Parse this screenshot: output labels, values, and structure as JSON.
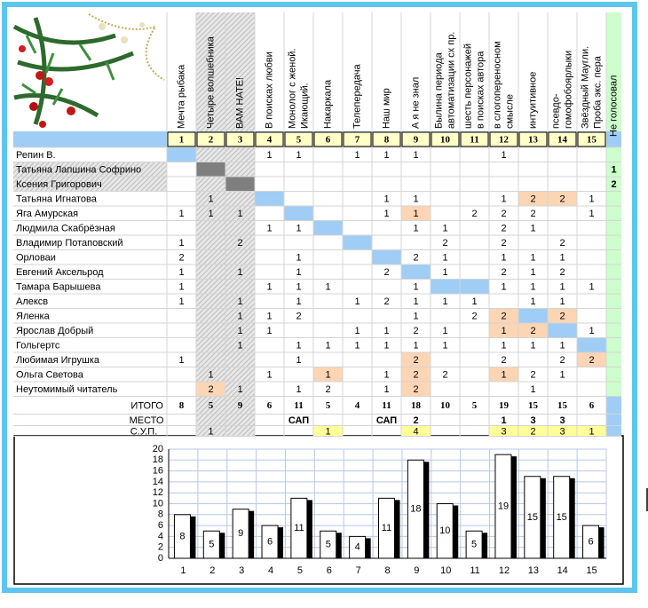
{
  "table": {
    "columns": [
      {
        "number": 1,
        "title": [
          "Мечта рыбака"
        ]
      },
      {
        "number": 2,
        "title": [
          "Четыре волшебника"
        ]
      },
      {
        "number": 3,
        "title": [
          "ВАМ НАТЕ!"
        ]
      },
      {
        "number": 4,
        "title": [
          "В поисках любви"
        ]
      },
      {
        "number": 5,
        "title": [
          "Монолог с женой.",
          "Икающий."
        ]
      },
      {
        "number": 6,
        "title": [
          "Накаркала"
        ]
      },
      {
        "number": 7,
        "title": [
          "Телепередача"
        ]
      },
      {
        "number": 8,
        "title": [
          "Наш мир"
        ]
      },
      {
        "number": 9,
        "title": [
          "А я не знал"
        ]
      },
      {
        "number": 10,
        "title": [
          "Былина периода",
          "автоматизации сх пр."
        ]
      },
      {
        "number": 11,
        "title": [
          "шесть персонажей",
          "в поисках автора"
        ]
      },
      {
        "number": 12,
        "title": [
          "в слогопереносном",
          "смысле"
        ]
      },
      {
        "number": 13,
        "title": [
          "интуитивное"
        ]
      },
      {
        "number": 14,
        "title": [
          "псевдо-",
          "гомофобоярлыки"
        ]
      },
      {
        "number": 15,
        "title": [
          "Звёздный Маугли.",
          "Проба экс. пера"
        ]
      }
    ],
    "extra_column": "Не голосовал",
    "rows": [
      {
        "name": "Репин В.",
        "cells": [
          null,
          null,
          null,
          1,
          1,
          null,
          1,
          1,
          1,
          null,
          null,
          1,
          null,
          null,
          null
        ],
        "extra": null
      },
      {
        "name": "Татьяна Лапшина Софрино",
        "cells": [
          null,
          null,
          null,
          null,
          null,
          null,
          null,
          null,
          null,
          null,
          null,
          null,
          null,
          null,
          null
        ],
        "extra": 1
      },
      {
        "name": "Ксения Григорович",
        "cells": [
          null,
          null,
          null,
          null,
          null,
          null,
          null,
          null,
          null,
          null,
          null,
          null,
          null,
          null,
          null
        ],
        "extra": 2
      },
      {
        "name": "Татьяна Игнатова",
        "cells": [
          null,
          1,
          null,
          null,
          null,
          null,
          null,
          1,
          1,
          null,
          null,
          1,
          2,
          2,
          1
        ],
        "extra": null
      },
      {
        "name": "Яга Амурская",
        "cells": [
          1,
          1,
          1,
          null,
          null,
          null,
          null,
          1,
          1,
          null,
          2,
          2,
          2,
          null,
          1
        ],
        "extra": null
      },
      {
        "name": "Людмила Скабрёзная",
        "cells": [
          null,
          null,
          null,
          1,
          1,
          null,
          null,
          null,
          1,
          1,
          null,
          2,
          1,
          null,
          null
        ],
        "extra": null
      },
      {
        "name": "Владимир Потаповский",
        "cells": [
          1,
          null,
          2,
          null,
          null,
          null,
          null,
          null,
          null,
          2,
          null,
          2,
          null,
          2,
          null
        ],
        "extra": null
      },
      {
        "name": "Орловаи",
        "cells": [
          2,
          null,
          null,
          null,
          1,
          null,
          null,
          null,
          2,
          1,
          null,
          1,
          1,
          1,
          null
        ],
        "extra": null
      },
      {
        "name": "Евгений Аксельрод",
        "cells": [
          1,
          null,
          1,
          null,
          1,
          null,
          null,
          2,
          null,
          1,
          null,
          2,
          1,
          2,
          null
        ],
        "extra": null
      },
      {
        "name": "Тамара Барышева",
        "cells": [
          1,
          null,
          null,
          1,
          1,
          1,
          null,
          null,
          1,
          null,
          null,
          1,
          1,
          1,
          1
        ],
        "extra": null
      },
      {
        "name": "Алексв",
        "cells": [
          1,
          null,
          1,
          null,
          1,
          null,
          1,
          2,
          1,
          1,
          1,
          null,
          1,
          1,
          null
        ],
        "extra": null
      },
      {
        "name": "Яленка",
        "cells": [
          null,
          null,
          1,
          1,
          2,
          null,
          null,
          null,
          1,
          null,
          2,
          2,
          null,
          2,
          null
        ],
        "extra": null
      },
      {
        "name": "Ярослав Добрый",
        "cells": [
          null,
          null,
          1,
          1,
          null,
          null,
          1,
          1,
          2,
          1,
          null,
          1,
          2,
          null,
          1
        ],
        "extra": null
      },
      {
        "name": "Гольгертс",
        "cells": [
          null,
          null,
          1,
          null,
          1,
          1,
          1,
          1,
          1,
          1,
          null,
          1,
          1,
          1,
          null
        ],
        "extra": null
      },
      {
        "name": "Любимая Игрушка",
        "cells": [
          1,
          null,
          null,
          null,
          1,
          null,
          null,
          null,
          2,
          null,
          null,
          2,
          null,
          2,
          2
        ],
        "extra": null
      },
      {
        "name": "Ольга Светова",
        "cells": [
          null,
          1,
          null,
          1,
          null,
          1,
          null,
          1,
          2,
          2,
          null,
          1,
          2,
          1,
          null
        ],
        "extra": null
      },
      {
        "name": "Неутомимый читатель",
        "cells": [
          null,
          2,
          1,
          null,
          1,
          2,
          null,
          1,
          2,
          null,
          null,
          null,
          1,
          null,
          null
        ],
        "extra": null
      }
    ],
    "totals": {
      "label": "ИТОГО",
      "values": [
        8,
        5,
        9,
        6,
        11,
        5,
        4,
        11,
        18,
        10,
        5,
        19,
        15,
        15,
        6
      ]
    },
    "place": {
      "label": "МЕСТО",
      "values": [
        null,
        null,
        null,
        null,
        "САП",
        null,
        null,
        "САП",
        2,
        null,
        null,
        1,
        3,
        3,
        null
      ],
      "value_colors": [
        null,
        null,
        null,
        null,
        "#808080",
        null,
        null,
        "#808080",
        "#1f3fbf",
        null,
        null,
        "#e01010",
        "#108020",
        "#108020",
        null
      ]
    },
    "sup": {
      "label": "С.У.П.",
      "values": [
        null,
        1,
        null,
        null,
        null,
        1,
        null,
        null,
        4,
        null,
        null,
        3,
        2,
        3,
        1
      ]
    }
  },
  "chart_data": {
    "type": "bar",
    "categories": [
      1,
      2,
      3,
      4,
      5,
      6,
      7,
      8,
      9,
      10,
      11,
      12,
      13,
      14,
      15
    ],
    "values": [
      8,
      5,
      9,
      6,
      11,
      5,
      4,
      11,
      18,
      10,
      5,
      19,
      15,
      15,
      6
    ],
    "color": "#ffffff",
    "ylim": [
      0,
      20
    ],
    "yticks": [
      0,
      2,
      4,
      6,
      8,
      10,
      12,
      14,
      16,
      18,
      20
    ],
    "grid": true
  }
}
